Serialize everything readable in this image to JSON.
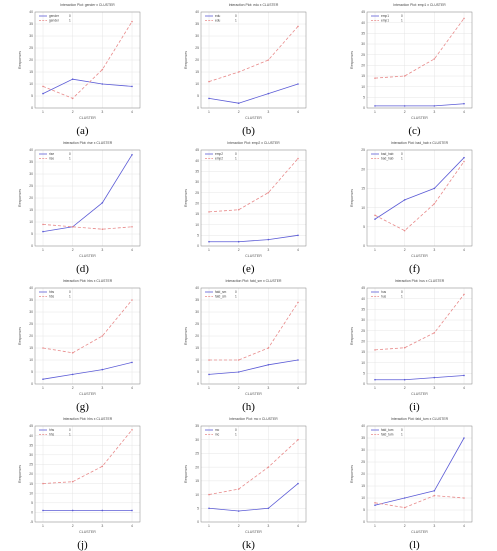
{
  "colors": {
    "level0": "#5b5bd6",
    "level1": "#e88a8a",
    "axis": "#888888",
    "grid": "#e0e0e0"
  },
  "chart_data": [
    {
      "type": "line",
      "panel_label": "(a)",
      "title": "Interaction Plot: gender x CLUSTER",
      "xlabel": "CLUSTER",
      "ylabel": "Responses",
      "categories": [
        "1",
        "2",
        "3",
        "4"
      ],
      "ylim": [
        0,
        40
      ],
      "yticks": [
        0,
        5,
        10,
        15,
        20,
        25,
        30,
        35,
        40
      ],
      "grid": true,
      "legend": "top-left",
      "series": [
        {
          "name": "gender",
          "level": "0",
          "values": [
            6,
            12,
            10,
            9
          ]
        },
        {
          "name": "gender",
          "level": "1",
          "values": [
            9,
            4,
            16,
            36
          ]
        }
      ]
    },
    {
      "type": "line",
      "panel_label": "(b)",
      "title": "Interaction Plot: edu x CLUSTER",
      "xlabel": "CLUSTER",
      "ylabel": "Responses",
      "categories": [
        "1",
        "2",
        "3",
        "4"
      ],
      "ylim": [
        0,
        40
      ],
      "yticks": [
        0,
        5,
        10,
        15,
        20,
        25,
        30,
        35,
        40
      ],
      "grid": true,
      "legend": "top-left",
      "series": [
        {
          "name": "edu",
          "level": "0",
          "values": [
            4,
            2,
            6,
            10
          ]
        },
        {
          "name": "edu",
          "level": "1",
          "values": [
            11,
            15,
            20,
            34
          ]
        }
      ]
    },
    {
      "type": "line",
      "panel_label": "(c)",
      "title": "Interaction Plot: emp1 x CLUSTER",
      "xlabel": "CLUSTER",
      "ylabel": "Responses",
      "categories": [
        "1",
        "2",
        "3",
        "4"
      ],
      "ylim": [
        0,
        45
      ],
      "yticks": [
        0,
        5,
        10,
        15,
        20,
        25,
        30,
        35,
        40,
        45
      ],
      "grid": true,
      "legend": "top-left",
      "series": [
        {
          "name": "emp1",
          "level": "0",
          "values": [
            1,
            1,
            1,
            2
          ]
        },
        {
          "name": "emp1",
          "level": "1",
          "values": [
            14,
            15,
            23,
            42
          ]
        }
      ]
    },
    {
      "type": "line",
      "panel_label": "(d)",
      "title": "Interaction Plot: rise x CLUSTER",
      "xlabel": "CLUSTER",
      "ylabel": "Responses",
      "categories": [
        "1",
        "2",
        "3",
        "4"
      ],
      "ylim": [
        0,
        40
      ],
      "yticks": [
        0,
        5,
        10,
        15,
        20,
        25,
        30,
        35,
        40
      ],
      "grid": true,
      "legend": "top-left",
      "series": [
        {
          "name": "rise",
          "level": "0",
          "values": [
            6,
            8,
            18,
            38
          ]
        },
        {
          "name": "rise",
          "level": "1",
          "values": [
            9,
            8,
            7,
            8
          ]
        }
      ]
    },
    {
      "type": "line",
      "panel_label": "(e)",
      "title": "Interaction Plot: emp2 x CLUSTER",
      "xlabel": "CLUSTER",
      "ylabel": "Responses",
      "categories": [
        "1",
        "2",
        "3",
        "4"
      ],
      "ylim": [
        0,
        45
      ],
      "yticks": [
        0,
        5,
        10,
        15,
        20,
        25,
        30,
        35,
        40,
        45
      ],
      "grid": true,
      "legend": "top-left",
      "series": [
        {
          "name": "emp2",
          "level": "0",
          "values": [
            2,
            2,
            3,
            5
          ]
        },
        {
          "name": "emp2",
          "level": "1",
          "values": [
            16,
            17,
            25,
            41
          ]
        }
      ]
    },
    {
      "type": "line",
      "panel_label": "(f)",
      "title": "Interaction Plot: bad_hab x CLUSTER",
      "xlabel": "CLUSTER",
      "ylabel": "Responses",
      "categories": [
        "1",
        "2",
        "3",
        "4"
      ],
      "ylim": [
        0,
        25
      ],
      "yticks": [
        0,
        5,
        10,
        15,
        20,
        25
      ],
      "grid": true,
      "legend": "top-left",
      "series": [
        {
          "name": "bad_hab",
          "level": "0",
          "values": [
            7,
            12,
            15,
            23
          ]
        },
        {
          "name": "bad_hab",
          "level": "1",
          "values": [
            8,
            4,
            11,
            22
          ]
        }
      ]
    },
    {
      "type": "line",
      "panel_label": "(g)",
      "title": "Interaction Plot: hbs x CLUSTER",
      "xlabel": "CLUSTER",
      "ylabel": "Responses",
      "categories": [
        "1",
        "2",
        "3",
        "4"
      ],
      "ylim": [
        0,
        40
      ],
      "yticks": [
        0,
        5,
        10,
        15,
        20,
        25,
        30,
        35,
        40
      ],
      "grid": true,
      "legend": "top-left",
      "series": [
        {
          "name": "hbs",
          "level": "0",
          "values": [
            2,
            4,
            6,
            9
          ]
        },
        {
          "name": "hbs",
          "level": "1",
          "values": [
            15,
            13,
            20,
            35
          ]
        }
      ]
    },
    {
      "type": "line",
      "panel_label": "(h)",
      "title": "Interaction Plot: fatd_sm x CLUSTER",
      "xlabel": "CLUSTER",
      "ylabel": "Responses",
      "categories": [
        "1",
        "2",
        "3",
        "4"
      ],
      "ylim": [
        0,
        40
      ],
      "yticks": [
        0,
        5,
        10,
        15,
        20,
        25,
        30,
        35,
        40
      ],
      "grid": true,
      "legend": "top-left",
      "series": [
        {
          "name": "fatd_sm",
          "level": "0",
          "values": [
            4,
            5,
            8,
            10
          ]
        },
        {
          "name": "fatd_sm",
          "level": "1",
          "values": [
            10,
            10,
            15,
            34
          ]
        }
      ]
    },
    {
      "type": "line",
      "panel_label": "(i)",
      "title": "Interaction Plot: hus x CLUSTER",
      "xlabel": "CLUSTER",
      "ylabel": "Responses",
      "categories": [
        "1",
        "2",
        "3",
        "4"
      ],
      "ylim": [
        0,
        45
      ],
      "yticks": [
        0,
        5,
        10,
        15,
        20,
        25,
        30,
        35,
        40,
        45
      ],
      "grid": true,
      "legend": "top-left",
      "series": [
        {
          "name": "hus",
          "level": "0",
          "values": [
            2,
            2,
            3,
            4
          ]
        },
        {
          "name": "hus",
          "level": "1",
          "values": [
            16,
            17,
            24,
            42
          ]
        }
      ]
    },
    {
      "type": "line",
      "panel_label": "(j)",
      "title": "Interaction Plot: hhs x CLUSTER",
      "xlabel": "CLUSTER",
      "ylabel": "Responses",
      "categories": [
        "1",
        "2",
        "3",
        "4"
      ],
      "ylim": [
        -5,
        45
      ],
      "yticks": [
        -5,
        0,
        5,
        10,
        15,
        20,
        25,
        30,
        35,
        40,
        45
      ],
      "grid": true,
      "legend": "top-left",
      "series": [
        {
          "name": "hhs",
          "level": "0",
          "values": [
            1,
            1,
            1,
            1
          ]
        },
        {
          "name": "hhs",
          "level": "1",
          "values": [
            15,
            16,
            24,
            43
          ]
        }
      ]
    },
    {
      "type": "line",
      "panel_label": "(k)",
      "title": "Interaction Plot: mc x CLUSTER",
      "xlabel": "CLUSTER",
      "ylabel": "Responses",
      "categories": [
        "1",
        "2",
        "3",
        "4"
      ],
      "ylim": [
        0,
        35
      ],
      "yticks": [
        0,
        5,
        10,
        15,
        20,
        25,
        30,
        35
      ],
      "grid": true,
      "legend": "top-left",
      "series": [
        {
          "name": "mc",
          "level": "0",
          "values": [
            5,
            4,
            5,
            14
          ]
        },
        {
          "name": "mc",
          "level": "1",
          "values": [
            10,
            12,
            20,
            30
          ]
        }
      ]
    },
    {
      "type": "line",
      "panel_label": "(l)",
      "title": "Interaction Plot: fatd_tum x CLUSTER",
      "xlabel": "CLUSTER",
      "ylabel": "Responses",
      "categories": [
        "1",
        "2",
        "3",
        "4"
      ],
      "ylim": [
        0,
        40
      ],
      "yticks": [
        0,
        5,
        10,
        15,
        20,
        25,
        30,
        35,
        40
      ],
      "grid": true,
      "legend": "top-left",
      "series": [
        {
          "name": "fatd_tum",
          "level": "0",
          "values": [
            7,
            10,
            13,
            35
          ]
        },
        {
          "name": "fatd_tum",
          "level": "1",
          "values": [
            8,
            6,
            11,
            10
          ]
        }
      ]
    }
  ]
}
